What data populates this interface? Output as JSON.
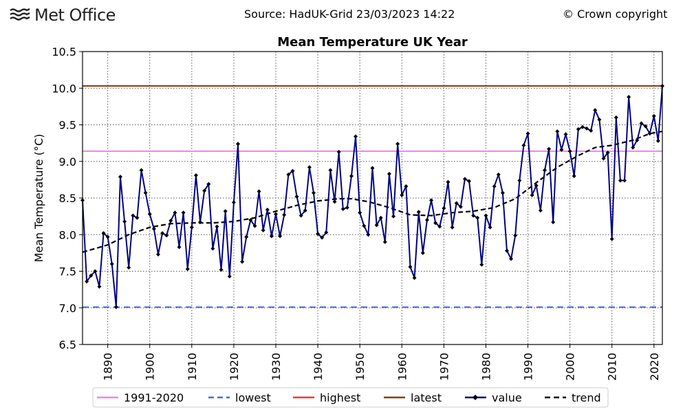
{
  "header": {
    "logo_text": "Met Office",
    "source": "Source: HadUK-Grid 23/03/2023 14:22",
    "copyright": "© Crown copyright"
  },
  "chart_data": {
    "type": "line",
    "title": "Mean Temperature UK Year",
    "xlabel": "",
    "ylabel": "Mean Temperature (°C)",
    "xlim": [
      1884,
      2022
    ],
    "ylim": [
      6.5,
      10.5
    ],
    "x_ticks": [
      1890,
      1900,
      1910,
      1920,
      1930,
      1940,
      1950,
      1960,
      1970,
      1980,
      1990,
      2000,
      2010,
      2020
    ],
    "y_ticks": [
      6.5,
      7.0,
      7.5,
      8.0,
      8.5,
      9.0,
      9.5,
      10.0,
      10.5
    ],
    "grid": true,
    "legend_position": "bottom",
    "reference_lines": [
      {
        "name": "1991-2020",
        "value": 9.14,
        "color": "#ee82ee",
        "style": "solid"
      },
      {
        "name": "lowest",
        "value": 7.01,
        "color": "#4169e1",
        "style": "dashed"
      },
      {
        "name": "highest",
        "value": 10.03,
        "color": "#ff3030",
        "style": "solid"
      },
      {
        "name": "latest",
        "value": 10.03,
        "color": "#8b3a0f",
        "style": "solid"
      }
    ],
    "series": [
      {
        "name": "value",
        "color": "#000080",
        "marker": "diamond",
        "start_year": 1884,
        "values": [
          8.47,
          7.36,
          7.44,
          7.5,
          7.29,
          8.02,
          7.97,
          7.6,
          7.01,
          8.79,
          8.18,
          7.55,
          8.26,
          8.23,
          8.88,
          8.57,
          8.28,
          8.08,
          7.73,
          8.02,
          7.99,
          8.19,
          8.3,
          7.83,
          8.3,
          7.53,
          8.1,
          8.81,
          8.17,
          8.6,
          8.69,
          7.81,
          8.11,
          7.52,
          8.32,
          7.43,
          8.44,
          9.24,
          7.63,
          7.97,
          8.2,
          8.12,
          8.59,
          8.06,
          8.34,
          7.98,
          8.28,
          7.98,
          8.27,
          8.82,
          8.87,
          8.52,
          8.26,
          8.33,
          8.92,
          8.57,
          8.01,
          7.96,
          8.03,
          8.88,
          8.45,
          9.13,
          8.35,
          8.37,
          8.8,
          9.34,
          8.3,
          8.12,
          8.0,
          8.91,
          8.13,
          8.23,
          7.9,
          8.83,
          8.25,
          9.24,
          8.54,
          8.66,
          7.56,
          7.41,
          8.31,
          7.75,
          8.2,
          8.47,
          8.16,
          8.11,
          8.36,
          8.72,
          8.1,
          8.43,
          8.38,
          8.76,
          8.73,
          8.26,
          8.23,
          7.59,
          8.26,
          8.1,
          8.66,
          8.82,
          8.57,
          7.78,
          7.67,
          7.99,
          8.74,
          9.22,
          9.38,
          8.54,
          8.67,
          8.33,
          8.88,
          9.17,
          8.17,
          9.41,
          9.16,
          9.37,
          9.14,
          8.8,
          9.44,
          9.47,
          9.45,
          9.42,
          9.7,
          9.57,
          9.04,
          9.12,
          7.94,
          9.6,
          8.74,
          8.74,
          9.88,
          9.19,
          9.29,
          9.52,
          9.48,
          9.38,
          9.62,
          9.28,
          10.03
        ]
      },
      {
        "name": "trend",
        "color": "#000000",
        "style": "dashed",
        "x": [
          1884,
          1890,
          1895,
          1900,
          1905,
          1910,
          1915,
          1920,
          1925,
          1930,
          1935,
          1940,
          1945,
          1948,
          1952,
          1957,
          1962,
          1967,
          1972,
          1977,
          1982,
          1987,
          1992,
          1997,
          2002,
          2006,
          2010,
          2015,
          2019,
          2022
        ],
        "values": [
          7.76,
          7.86,
          8.0,
          8.1,
          8.15,
          8.16,
          8.16,
          8.18,
          8.23,
          8.32,
          8.4,
          8.46,
          8.49,
          8.49,
          8.45,
          8.37,
          8.27,
          8.26,
          8.3,
          8.32,
          8.37,
          8.49,
          8.71,
          8.92,
          9.08,
          9.19,
          9.22,
          9.29,
          9.38,
          9.41
        ]
      }
    ],
    "legend": [
      "1991-2020",
      "lowest",
      "highest",
      "latest",
      "value",
      "trend"
    ]
  }
}
